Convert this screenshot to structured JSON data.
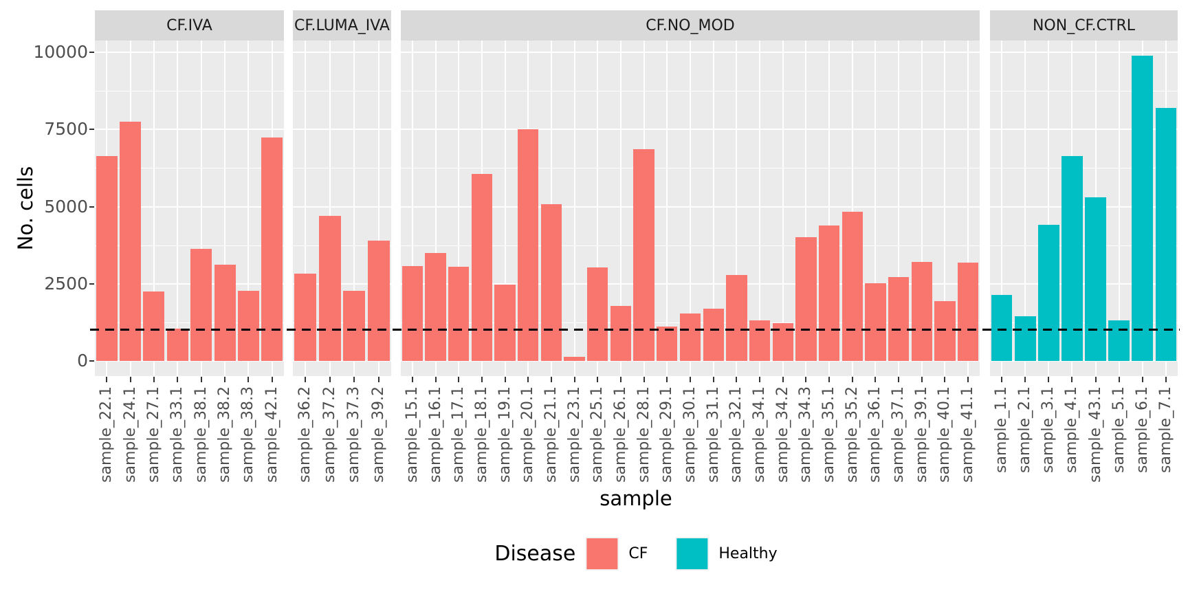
{
  "chart_data": {
    "type": "bar",
    "title": "",
    "xlabel": "sample",
    "ylabel": "No. cells",
    "ylim": [
      0,
      10000
    ],
    "y_ticks": [
      0,
      2500,
      5000,
      7500,
      10000
    ],
    "y_minor_ticks": [
      1250,
      3750,
      6250,
      8750
    ],
    "grid": true,
    "panel_bg": "#EBEBEB",
    "strip_bg": "#D9D9D9",
    "grid_color": "#FFFFFF",
    "axis_text_color": "#4D4D4D",
    "hline": {
      "value": 1000,
      "style": "dashed",
      "color": "#000000"
    },
    "legend": {
      "title": "Disease",
      "position": "bottom",
      "entries": [
        {
          "label": "CF",
          "color": "#F8766D"
        },
        {
          "label": "Healthy",
          "color": "#00BFC4"
        }
      ]
    },
    "facets": [
      {
        "label": "CF.IVA",
        "series": "CF",
        "color": "#F8766D",
        "categories": [
          "sample_22.1",
          "sample_24.1",
          "sample_27.1",
          "sample_33.1",
          "sample_38.1",
          "sample_38.2",
          "sample_38.3",
          "sample_42.1"
        ],
        "values": [
          6630,
          7760,
          2250,
          1050,
          3640,
          3120,
          2270,
          7240
        ]
      },
      {
        "label": "CF.LUMA_IVA",
        "series": "CF",
        "color": "#F8766D",
        "categories": [
          "sample_36.2",
          "sample_37.2",
          "sample_37.3",
          "sample_39.2"
        ],
        "values": [
          2830,
          4700,
          2270,
          3900
        ]
      },
      {
        "label": "CF.NO_MOD",
        "series": "CF",
        "color": "#F8766D",
        "categories": [
          "sample_15.1",
          "sample_16.1",
          "sample_17.1",
          "sample_18.1",
          "sample_19.1",
          "sample_20.1",
          "sample_21.1",
          "sample_23.1",
          "sample_25.1",
          "sample_26.1",
          "sample_28.1",
          "sample_29.1",
          "sample_30.1",
          "sample_31.1",
          "sample_32.1",
          "sample_34.1",
          "sample_34.2",
          "sample_34.3",
          "sample_35.1",
          "sample_35.2",
          "sample_36.1",
          "sample_37.1",
          "sample_39.1",
          "sample_40.1",
          "sample_41.1"
        ],
        "values": [
          3080,
          3500,
          3050,
          6050,
          2470,
          7500,
          5080,
          140,
          3030,
          1780,
          6870,
          1110,
          1540,
          1680,
          2790,
          1320,
          1230,
          4010,
          4390,
          4830,
          2520,
          2720,
          3210,
          1930,
          3190
        ]
      },
      {
        "label": "NON_CF.CTRL",
        "series": "Healthy",
        "color": "#00BFC4",
        "categories": [
          "sample_1.1",
          "sample_2.1",
          "sample_3.1",
          "sample_4.1",
          "sample_43.1",
          "sample_5.1",
          "sample_6.1",
          "sample_7.1"
        ],
        "values": [
          2140,
          1450,
          4420,
          6640,
          5310,
          1320,
          9900,
          8190
        ]
      }
    ]
  }
}
